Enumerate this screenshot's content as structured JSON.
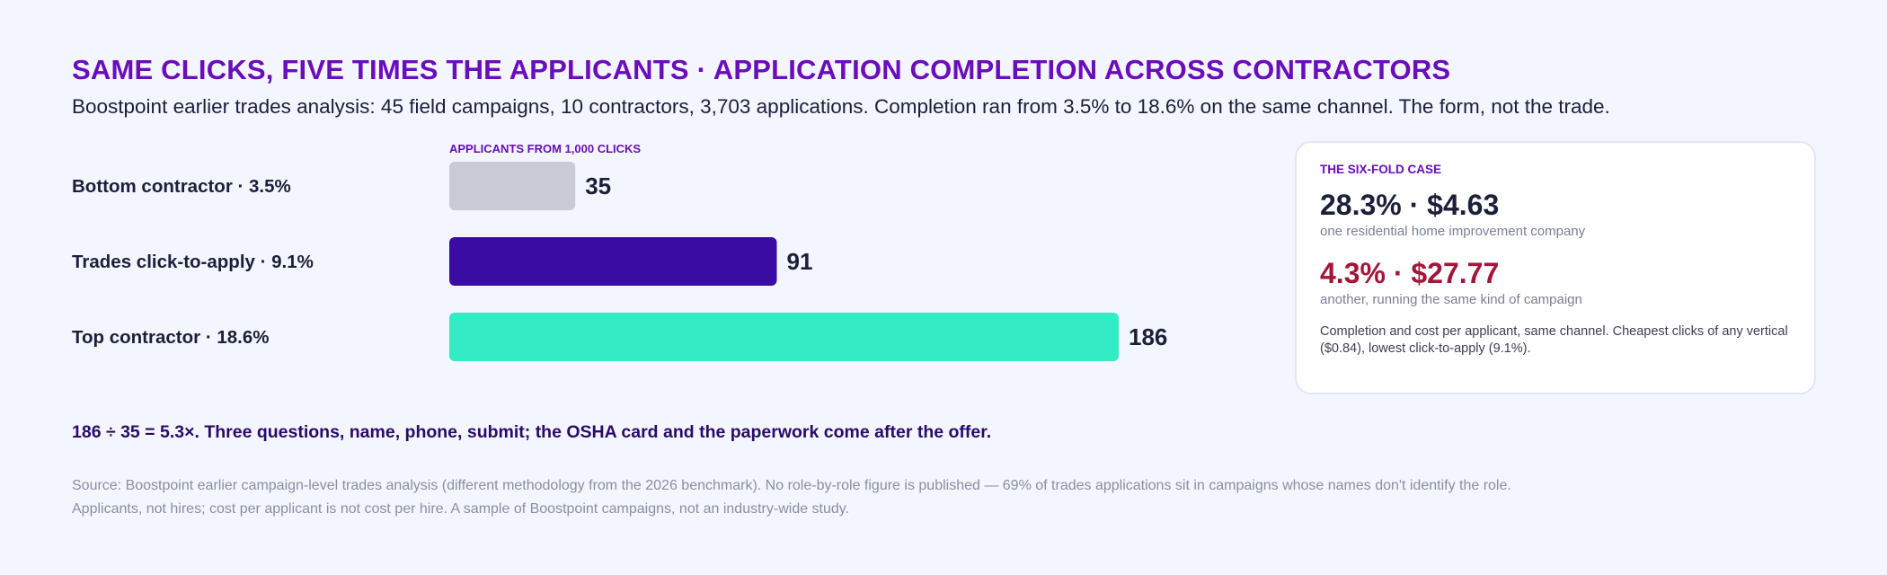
{
  "title": "SAME CLICKS, FIVE TIMES THE APPLICANTS · APPLICATION COMPLETION ACROSS CONTRACTORS",
  "subtitle": "Boostpoint earlier trades analysis: 45 field campaigns, 10 contractors, 3,703 applications. Completion ran from 3.5% to 18.6% on the same channel. The form, not the trade.",
  "chart_data": {
    "type": "bar",
    "orientation": "horizontal",
    "value_caption": "APPLICANTS FROM 1,000 CLICKS",
    "categories": [
      "Bottom contractor · 3.5%",
      "Trades click-to-apply · 9.1%",
      "Top contractor · 18.6%"
    ],
    "values": [
      35,
      91,
      186
    ],
    "value_labels": [
      "35",
      "91",
      "186"
    ],
    "colors": [
      "#c8cbd6",
      "#3a0ca3",
      "#33ebc4"
    ],
    "xlim": [
      0,
      186
    ],
    "grid": false,
    "legend": "none"
  },
  "card": {
    "kicker": "THE SIX-FOLD CASE",
    "stat1": "28.3% · $4.63",
    "stat1_caption": "one residential home improvement company",
    "stat2": "4.3% · $27.77",
    "stat2_caption": "another, running the same kind of campaign",
    "note": "Completion and cost per applicant, same channel. Cheapest clicks of any vertical ($0.84), lowest click-to-apply (9.1%)."
  },
  "takeaway": "186 ÷ 35 = 5.3×. Three questions, name, phone, submit; the OSHA card and the paperwork come after the offer.",
  "source": {
    "line1": "Source: Boostpoint earlier campaign-level trades analysis (different methodology from the 2026 benchmark). No role-by-role figure is published — 69% of trades applications sit in campaigns whose names don't identify the role.",
    "line2": "Applicants, not hires; cost per applicant is not cost per hire. A sample of Boostpoint campaigns, not an industry-wide study."
  },
  "colors": {
    "accent": "#6a0dbd",
    "negative": "#a3163a",
    "background": "#f3f6fe"
  }
}
